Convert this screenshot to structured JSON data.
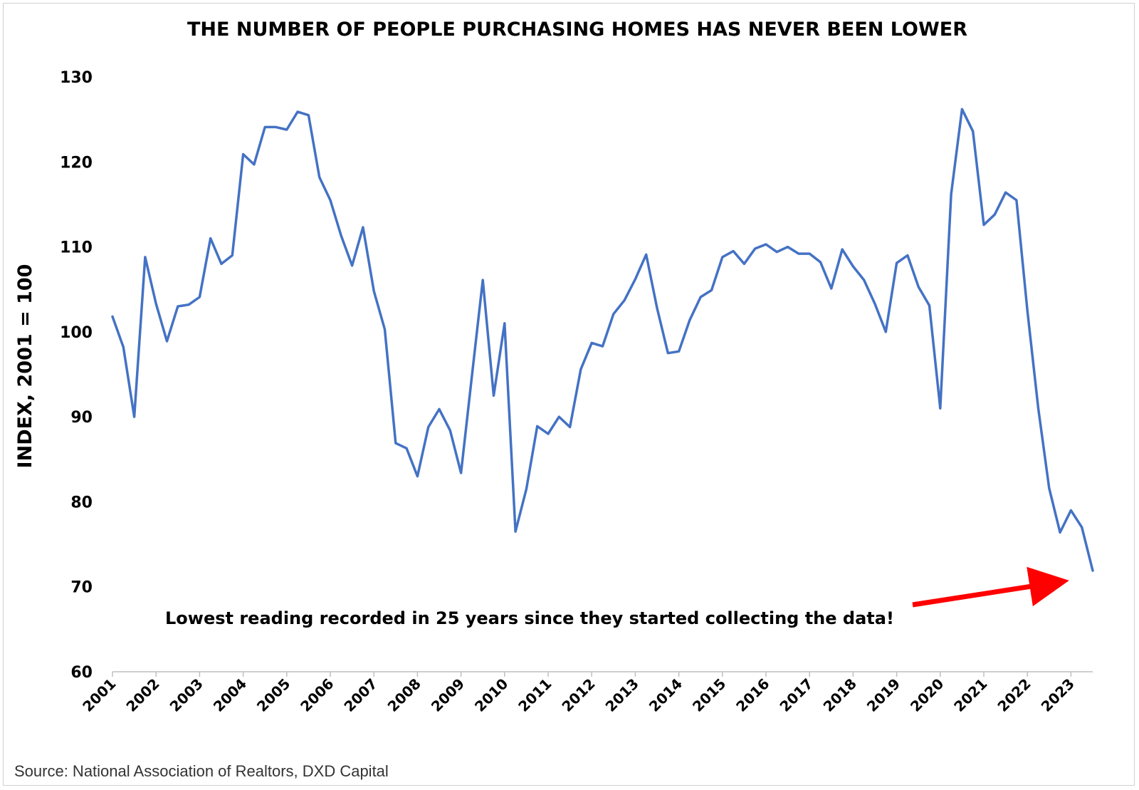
{
  "chart_data": {
    "type": "line",
    "title": "THE NUMBER OF PEOPLE PURCHASING HOMES HAS NEVER BEEN LOWER",
    "xlabel": "",
    "ylabel": "INDEX, 2001 = 100",
    "ylim": [
      60,
      130
    ],
    "yticks": [
      60,
      70,
      80,
      90,
      100,
      110,
      120,
      130
    ],
    "xlim": [
      2001,
      2023.5
    ],
    "xticks": [
      "2001",
      "2002",
      "2003",
      "2004",
      "2005",
      "2006",
      "2007",
      "2008",
      "2009",
      "2010",
      "2011",
      "2012",
      "2013",
      "2014",
      "2015",
      "2016",
      "2017",
      "2018",
      "2019",
      "2020",
      "2021",
      "2022",
      "2023"
    ],
    "grid": false,
    "legend": "none",
    "line_color": "#4472C4",
    "series": [
      {
        "x": [
          2001.0,
          2001.25,
          2001.5,
          2001.75,
          2002.0,
          2002.25,
          2002.5,
          2002.75,
          2003.0,
          2003.25,
          2003.5,
          2003.75,
          2004.0,
          2004.25,
          2004.5,
          2004.75,
          2005.0,
          2005.25,
          2005.5,
          2005.75,
          2006.0,
          2006.25,
          2006.5,
          2006.75,
          2007.0,
          2007.25,
          2007.5,
          2007.75,
          2008.0,
          2008.25,
          2008.5,
          2008.75,
          2009.0,
          2009.25,
          2009.5,
          2009.75,
          2010.0,
          2010.25,
          2010.5,
          2010.75,
          2011.0,
          2011.25,
          2011.5,
          2011.75,
          2012.0,
          2012.25,
          2012.5,
          2012.75,
          2013.0,
          2013.25,
          2013.5,
          2013.75,
          2014.0,
          2014.25,
          2014.5,
          2014.75,
          2015.0,
          2015.25,
          2015.5,
          2015.75,
          2016.0,
          2016.25,
          2016.5,
          2016.75,
          2017.0,
          2017.25,
          2017.5,
          2017.75,
          2018.0,
          2018.25,
          2018.5,
          2018.75,
          2019.0,
          2019.25,
          2019.5,
          2019.75,
          2020.0,
          2020.25,
          2020.5,
          2020.75,
          2021.0,
          2021.25,
          2021.5,
          2021.75,
          2022.0,
          2022.25,
          2022.5,
          2022.75,
          2023.0,
          2023.25,
          2023.5
        ],
        "values": [
          101.8,
          98.2,
          90.0,
          108.8,
          103.3,
          98.9,
          103.0,
          103.2,
          104.1,
          111.0,
          108.0,
          109.0,
          120.9,
          119.7,
          124.1,
          124.1,
          123.8,
          125.9,
          125.5,
          118.2,
          115.5,
          111.3,
          107.8,
          112.3,
          104.8,
          100.3,
          86.9,
          86.3,
          83.0,
          88.8,
          90.9,
          88.4,
          83.4,
          94.8,
          106.1,
          92.5,
          101.0,
          76.5,
          81.5,
          88.9,
          88.0,
          90.0,
          88.8,
          95.6,
          98.7,
          98.3,
          102.1,
          103.7,
          106.2,
          109.1,
          102.8,
          97.5,
          97.7,
          101.4,
          104.1,
          104.9,
          108.8,
          109.5,
          108.0,
          109.8,
          110.3,
          109.4,
          110.0,
          109.2,
          109.2,
          108.2,
          105.1,
          109.7,
          107.7,
          106.1,
          103.3,
          100.0,
          108.1,
          109.0,
          105.3,
          103.1,
          91.0,
          116.2,
          126.2,
          123.6,
          112.6,
          113.8,
          116.4,
          115.5,
          102.5,
          91.0,
          81.6,
          76.4,
          79.0,
          77.0,
          71.9
        ]
      }
    ],
    "annotations": [
      {
        "text": "Lowest reading recorded in 25 years since they started collecting the data!",
        "arrow_color": "#FF0000"
      }
    ]
  },
  "source": "Source: National Association of Realtors, DXD Capital"
}
